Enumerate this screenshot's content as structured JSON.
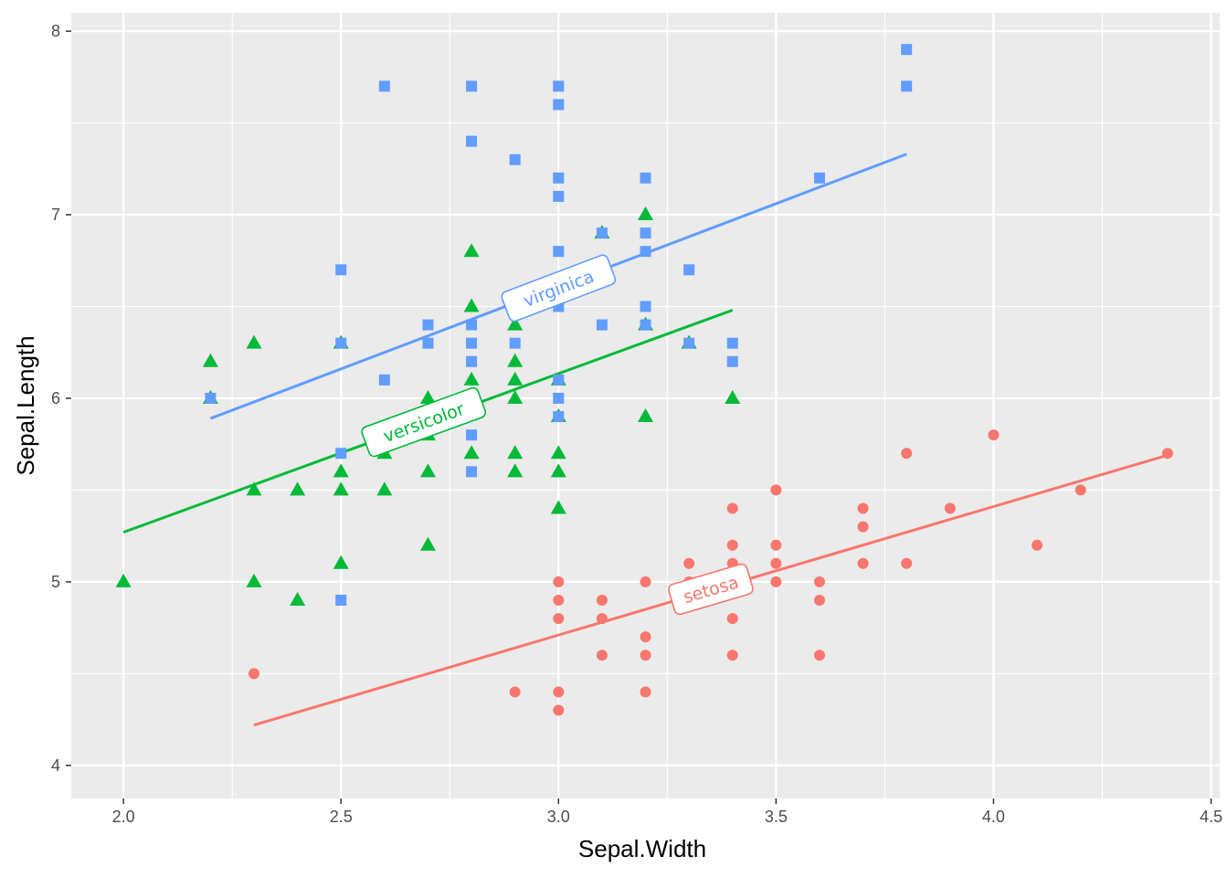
{
  "chart_data": {
    "type": "scatter",
    "title": "",
    "xlabel": "Sepal.Width",
    "ylabel": "Sepal.Length",
    "xlim": [
      1.88,
      4.52
    ],
    "ylim": [
      3.82,
      8.1
    ],
    "xticks": [
      2.0,
      2.5,
      3.0,
      3.5,
      4.0,
      4.5
    ],
    "xtick_labels": [
      "2.0",
      "2.5",
      "3.0",
      "3.5",
      "4.0",
      "4.5"
    ],
    "yticks": [
      4,
      5,
      6,
      7,
      8
    ],
    "ytick_labels": [
      "4",
      "5",
      "6",
      "7",
      "8"
    ],
    "grid": true,
    "legend": "none (direct line labels)",
    "series": [
      {
        "name": "setosa",
        "color": "#F8766D",
        "shape": "circle",
        "points": [
          [
            2.3,
            4.5
          ],
          [
            2.9,
            4.4
          ],
          [
            3.0,
            4.3
          ],
          [
            3.0,
            4.4
          ],
          [
            3.0,
            4.8
          ],
          [
            3.0,
            4.9
          ],
          [
            3.0,
            5.0
          ],
          [
            3.1,
            4.6
          ],
          [
            3.1,
            4.8
          ],
          [
            3.1,
            4.9
          ],
          [
            3.2,
            4.4
          ],
          [
            3.2,
            4.6
          ],
          [
            3.2,
            4.7
          ],
          [
            3.2,
            5.0
          ],
          [
            3.3,
            5.0
          ],
          [
            3.3,
            5.1
          ],
          [
            3.4,
            4.6
          ],
          [
            3.4,
            4.8
          ],
          [
            3.4,
            5.0
          ],
          [
            3.4,
            5.1
          ],
          [
            3.4,
            5.2
          ],
          [
            3.4,
            5.4
          ],
          [
            3.5,
            5.0
          ],
          [
            3.5,
            5.1
          ],
          [
            3.5,
            5.2
          ],
          [
            3.5,
            5.5
          ],
          [
            3.6,
            4.6
          ],
          [
            3.6,
            4.9
          ],
          [
            3.6,
            5.0
          ],
          [
            3.7,
            5.1
          ],
          [
            3.7,
            5.3
          ],
          [
            3.7,
            5.4
          ],
          [
            3.8,
            5.1
          ],
          [
            3.8,
            5.7
          ],
          [
            3.9,
            5.4
          ],
          [
            4.0,
            5.8
          ],
          [
            4.1,
            5.2
          ],
          [
            4.2,
            5.5
          ],
          [
            4.4,
            5.7
          ]
        ],
        "fit": {
          "x": [
            2.3,
            4.4
          ],
          "y": [
            4.22,
            5.69
          ]
        },
        "label": {
          "text": "setosa",
          "x": 3.35,
          "y": 4.96
        }
      },
      {
        "name": "versicolor",
        "color": "#00BA38",
        "shape": "triangle",
        "points": [
          [
            2.0,
            5.0
          ],
          [
            2.2,
            6.0
          ],
          [
            2.2,
            6.2
          ],
          [
            2.3,
            5.0
          ],
          [
            2.3,
            5.5
          ],
          [
            2.3,
            6.3
          ],
          [
            2.4,
            4.9
          ],
          [
            2.4,
            5.5
          ],
          [
            2.5,
            5.1
          ],
          [
            2.5,
            5.5
          ],
          [
            2.5,
            5.6
          ],
          [
            2.5,
            6.3
          ],
          [
            2.6,
            5.5
          ],
          [
            2.6,
            5.7
          ],
          [
            2.7,
            5.2
          ],
          [
            2.7,
            5.6
          ],
          [
            2.7,
            5.8
          ],
          [
            2.7,
            6.0
          ],
          [
            2.8,
            5.7
          ],
          [
            2.8,
            6.1
          ],
          [
            2.8,
            6.5
          ],
          [
            2.8,
            6.8
          ],
          [
            2.9,
            5.6
          ],
          [
            2.9,
            5.7
          ],
          [
            2.9,
            6.0
          ],
          [
            2.9,
            6.1
          ],
          [
            2.9,
            6.2
          ],
          [
            2.9,
            6.4
          ],
          [
            3.0,
            5.4
          ],
          [
            3.0,
            5.6
          ],
          [
            3.0,
            5.7
          ],
          [
            3.0,
            5.9
          ],
          [
            3.0,
            6.1
          ],
          [
            3.1,
            6.9
          ],
          [
            3.2,
            5.9
          ],
          [
            3.2,
            6.4
          ],
          [
            3.2,
            7.0
          ],
          [
            3.3,
            6.3
          ],
          [
            3.4,
            6.0
          ]
        ],
        "fit": {
          "x": [
            2.0,
            3.4
          ],
          "y": [
            5.27,
            6.48
          ]
        },
        "label": {
          "text": "versicolor",
          "x": 2.69,
          "y": 5.87
        }
      },
      {
        "name": "virginica",
        "color": "#619CFF",
        "shape": "square",
        "points": [
          [
            2.2,
            6.0
          ],
          [
            2.5,
            4.9
          ],
          [
            2.5,
            5.7
          ],
          [
            2.5,
            6.3
          ],
          [
            2.5,
            6.7
          ],
          [
            2.6,
            6.1
          ],
          [
            2.6,
            7.7
          ],
          [
            2.7,
            6.3
          ],
          [
            2.7,
            6.4
          ],
          [
            2.8,
            5.6
          ],
          [
            2.8,
            5.8
          ],
          [
            2.8,
            6.2
          ],
          [
            2.8,
            6.3
          ],
          [
            2.8,
            6.4
          ],
          [
            2.8,
            7.4
          ],
          [
            2.8,
            7.7
          ],
          [
            2.9,
            6.3
          ],
          [
            2.9,
            7.3
          ],
          [
            3.0,
            5.9
          ],
          [
            3.0,
            6.0
          ],
          [
            3.0,
            6.1
          ],
          [
            3.0,
            6.5
          ],
          [
            3.0,
            6.8
          ],
          [
            3.0,
            7.1
          ],
          [
            3.0,
            7.2
          ],
          [
            3.0,
            7.6
          ],
          [
            3.0,
            7.7
          ],
          [
            3.1,
            6.4
          ],
          [
            3.1,
            6.9
          ],
          [
            3.2,
            6.4
          ],
          [
            3.2,
            6.5
          ],
          [
            3.2,
            6.8
          ],
          [
            3.2,
            6.9
          ],
          [
            3.2,
            7.2
          ],
          [
            3.3,
            6.3
          ],
          [
            3.3,
            6.7
          ],
          [
            3.4,
            6.2
          ],
          [
            3.4,
            6.3
          ],
          [
            3.6,
            7.2
          ],
          [
            3.8,
            7.7
          ],
          [
            3.8,
            7.9
          ]
        ],
        "fit": {
          "x": [
            2.2,
            3.8
          ],
          "y": [
            5.89,
            7.33
          ]
        },
        "label": {
          "text": "virginica",
          "x": 3.0,
          "y": 6.6
        }
      }
    ]
  }
}
